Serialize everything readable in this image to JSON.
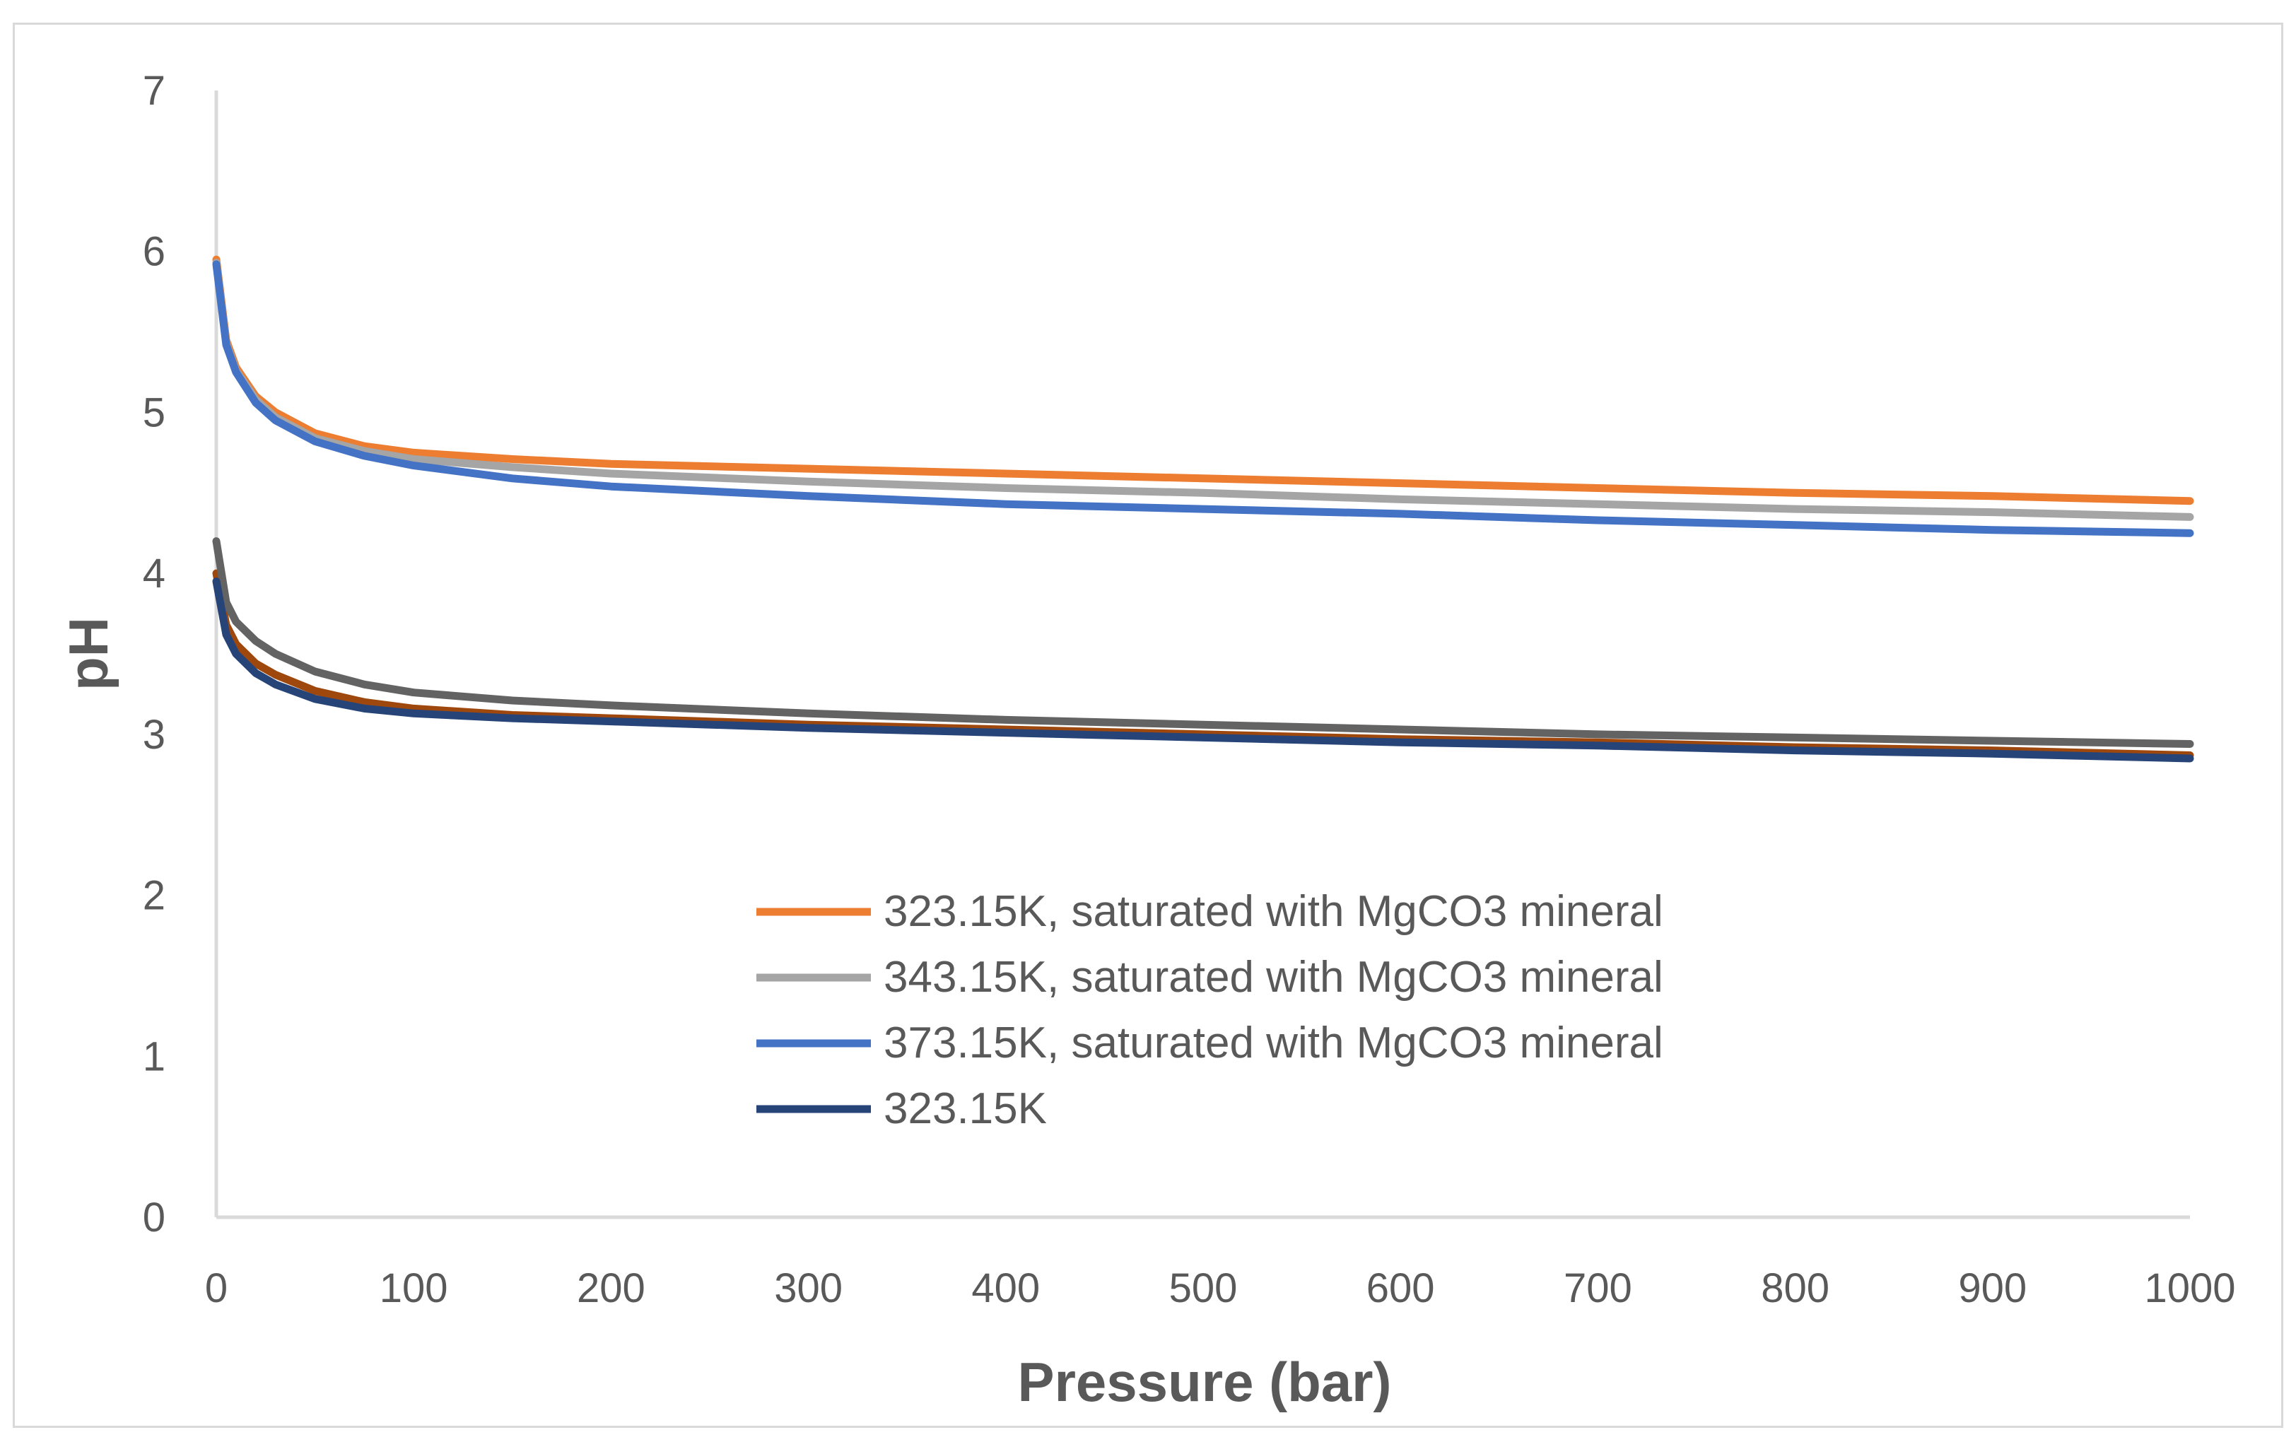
{
  "chart_data": {
    "type": "line",
    "title": "",
    "xlabel": "Pressure (bar)",
    "ylabel": "pH",
    "xlim": [
      0,
      1000
    ],
    "ylim": [
      0,
      7
    ],
    "xticks": [
      "0",
      "100",
      "200",
      "300",
      "400",
      "500",
      "600",
      "700",
      "800",
      "900",
      "1000"
    ],
    "yticks": [
      "0",
      "1",
      "2",
      "3",
      "4",
      "5",
      "6",
      "7"
    ],
    "grid": false,
    "legend_position": "center-bottom",
    "series": [
      {
        "name": "323.15K, saturated with MgCO3 mineral",
        "color": "#ED7D31",
        "in_legend": true,
        "x": [
          0,
          5,
          10,
          20,
          30,
          50,
          75,
          100,
          150,
          200,
          300,
          400,
          500,
          600,
          700,
          800,
          900,
          1000
        ],
        "y": [
          5.95,
          5.45,
          5.28,
          5.1,
          5.0,
          4.87,
          4.79,
          4.75,
          4.71,
          4.68,
          4.65,
          4.62,
          4.59,
          4.56,
          4.53,
          4.5,
          4.48,
          4.45
        ]
      },
      {
        "name": "343.15K, saturated with MgCO3 mineral",
        "color": "#A5A5A5",
        "in_legend": true,
        "x": [
          0,
          5,
          10,
          20,
          30,
          50,
          75,
          100,
          150,
          200,
          300,
          400,
          500,
          600,
          700,
          800,
          900,
          1000
        ],
        "y": [
          5.93,
          5.43,
          5.26,
          5.08,
          4.97,
          4.84,
          4.76,
          4.71,
          4.66,
          4.62,
          4.57,
          4.53,
          4.5,
          4.46,
          4.43,
          4.4,
          4.38,
          4.35
        ]
      },
      {
        "name": "373.15K, saturated with MgCO3 mineral",
        "color": "#4472C4",
        "in_legend": true,
        "x": [
          0,
          5,
          10,
          20,
          30,
          50,
          75,
          100,
          150,
          200,
          300,
          400,
          500,
          600,
          700,
          800,
          900,
          1000
        ],
        "y": [
          5.92,
          5.42,
          5.25,
          5.06,
          4.95,
          4.82,
          4.73,
          4.67,
          4.59,
          4.54,
          4.48,
          4.43,
          4.4,
          4.37,
          4.33,
          4.3,
          4.27,
          4.25
        ]
      },
      {
        "name": "323.15K",
        "color": "#264478",
        "in_legend": true,
        "x": [
          0,
          5,
          10,
          20,
          30,
          50,
          75,
          100,
          150,
          200,
          300,
          400,
          500,
          600,
          700,
          800,
          900,
          1000
        ],
        "y": [
          3.95,
          3.62,
          3.5,
          3.38,
          3.31,
          3.22,
          3.16,
          3.13,
          3.1,
          3.08,
          3.04,
          3.01,
          2.98,
          2.95,
          2.93,
          2.9,
          2.88,
          2.85
        ]
      },
      {
        "name": "",
        "color": "#9E480E",
        "in_legend": false,
        "x": [
          0,
          5,
          10,
          20,
          30,
          50,
          75,
          100,
          150,
          200,
          300,
          400,
          500,
          600,
          700,
          800,
          900,
          1000
        ],
        "y": [
          4.0,
          3.68,
          3.56,
          3.44,
          3.37,
          3.27,
          3.2,
          3.16,
          3.12,
          3.1,
          3.06,
          3.03,
          3.0,
          2.97,
          2.95,
          2.92,
          2.9,
          2.87
        ]
      },
      {
        "name": "",
        "color": "#636363",
        "in_legend": false,
        "x": [
          0,
          5,
          10,
          20,
          30,
          50,
          75,
          100,
          150,
          200,
          300,
          400,
          500,
          600,
          700,
          800,
          900,
          1000
        ],
        "y": [
          4.2,
          3.82,
          3.7,
          3.58,
          3.5,
          3.39,
          3.31,
          3.26,
          3.21,
          3.18,
          3.13,
          3.09,
          3.06,
          3.03,
          3.0,
          2.98,
          2.96,
          2.94
        ]
      }
    ]
  }
}
